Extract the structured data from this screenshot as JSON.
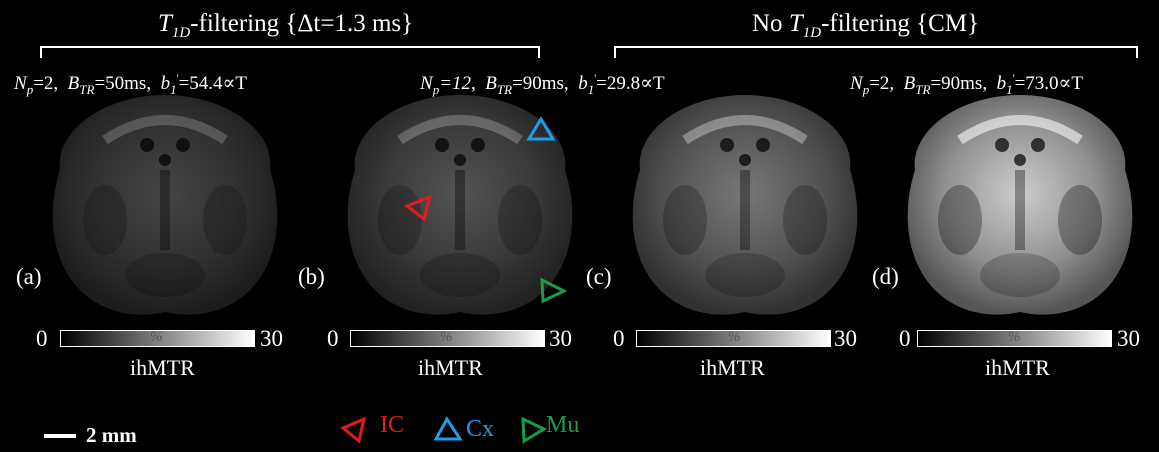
{
  "groups": {
    "filtered": {
      "title_text": "-filtering {Δt=1.3 ms}"
    },
    "unfiltered": {
      "title_prefix": "No ",
      "title_text": "-filtering {CM}"
    }
  },
  "panels": [
    {
      "label": "(a)",
      "np": "=2,",
      "btr": "=50ms,",
      "b1": "=54.4∝T",
      "intensity": 0.32
    },
    {
      "label": "(b)",
      "np": "=12,",
      "btr": "=90ms,",
      "b1": "=29.8∝T",
      "intensity": 0.38
    },
    {
      "label": "(c)",
      "intensity": 0.55
    },
    {
      "label": "(d)",
      "np": "=2,",
      "btr": "=90ms,",
      "b1": "=73.0∝T",
      "intensity": 0.95
    }
  ],
  "colorbar": {
    "min": "0",
    "max": "30",
    "unit": "%",
    "name": "ihMTR"
  },
  "scale_bar": {
    "label": "2 mm"
  },
  "legend": [
    {
      "label": "IC",
      "color": "#e31a1c",
      "icon": "triangle-left"
    },
    {
      "label": "Cx",
      "color": "#1f9ee6",
      "icon": "triangle-up"
    },
    {
      "label": "Mu",
      "color": "#1a9c4a",
      "icon": "triangle-right"
    }
  ],
  "colors": {
    "background": "#000000",
    "ic": "#e31a1c",
    "cx": "#1f9ee6",
    "mu": "#1a9c4a"
  }
}
